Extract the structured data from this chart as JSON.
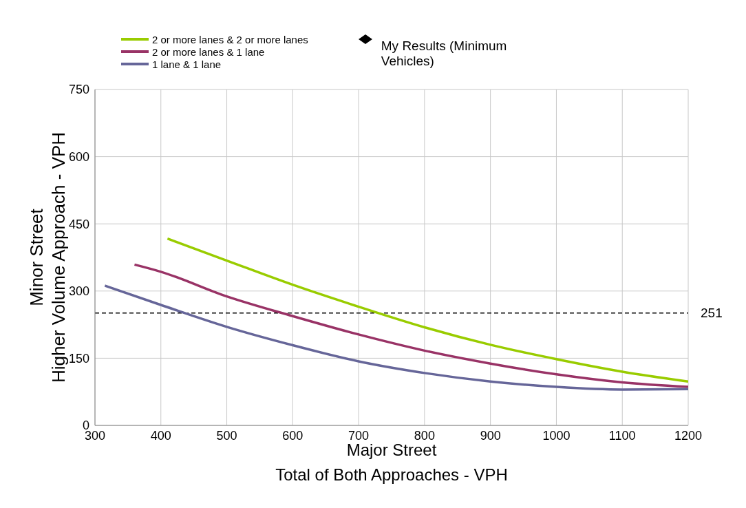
{
  "chart_data": {
    "type": "line",
    "xlabel": "Major Street\nTotal of Both Approaches - VPH",
    "ylabel": "Minor Street\nHigher Volume Approach - VPH",
    "xlim": [
      300,
      1200
    ],
    "xticks": [
      300,
      400,
      500,
      600,
      700,
      800,
      900,
      1000,
      1100,
      1200
    ],
    "ylim": [
      0,
      750
    ],
    "yticks": [
      0,
      150,
      300,
      450,
      600,
      750
    ],
    "grid": true,
    "legend": "top",
    "marker": "none",
    "line_style": "solid",
    "series": [
      {
        "name": "2 or more lanes & 2 or more lanes",
        "color": "#99cc00",
        "x": [
          410,
          500,
          600,
          700,
          800,
          900,
          1000,
          1100,
          1200
        ],
        "values": [
          417,
          368,
          314,
          265,
          219,
          180,
          148,
          120,
          98
        ]
      },
      {
        "name": "2 or more lanes & 1 lane",
        "color": "#993366",
        "x": [
          360,
          400,
          500,
          600,
          700,
          800,
          900,
          1000,
          1100,
          1200
        ],
        "values": [
          359,
          343,
          288,
          244,
          203,
          167,
          138,
          114,
          96,
          86
        ]
      },
      {
        "name": "1 lane & 1 lane",
        "color": "#666699",
        "x": [
          315,
          400,
          500,
          600,
          700,
          800,
          900,
          1000,
          1100,
          1200
        ],
        "values": [
          312,
          269,
          220,
          179,
          143,
          117,
          98,
          86,
          80,
          81
        ]
      },
      {
        "name": "My Results (Minimum Vehicles)",
        "type": "scatter",
        "marker": "diamond",
        "color": "#000000"
      }
    ],
    "ref_lines": [
      {
        "axis": "y",
        "value": 251,
        "label": "251",
        "color": "#000000",
        "line_style": "dashed"
      }
    ]
  }
}
